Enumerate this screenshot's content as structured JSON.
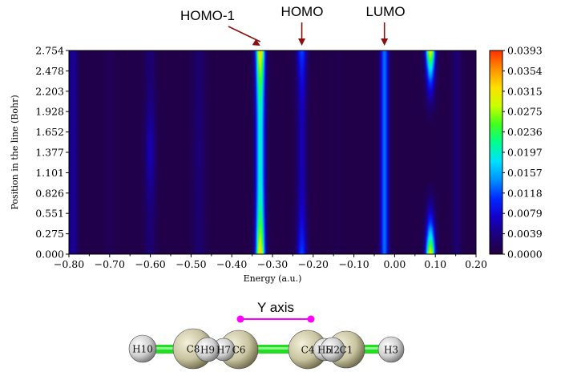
{
  "chart_data": {
    "type": "heatmap",
    "xlabel": "Energy (a.u.)",
    "ylabel": "Position in the line (Bohr)",
    "xlim": [
      -0.8,
      0.2
    ],
    "ylim": [
      0.0,
      2.754
    ],
    "x_ticks": [
      "−0.80",
      "−0.70",
      "−0.60",
      "−0.50",
      "−0.40",
      "−0.30",
      "−0.20",
      "−0.10",
      "0.00",
      "0.10",
      "0.20"
    ],
    "x_tick_values": [
      -0.8,
      -0.7,
      -0.6,
      -0.5,
      -0.4,
      -0.3,
      -0.2,
      -0.1,
      0.0,
      0.1,
      0.2
    ],
    "y_ticks": [
      "0.000",
      "0.275",
      "0.551",
      "0.826",
      "1.101",
      "1.377",
      "1.652",
      "1.928",
      "2.203",
      "2.478",
      "2.754"
    ],
    "y_tick_values": [
      0.0,
      0.275,
      0.551,
      0.826,
      1.101,
      1.377,
      1.652,
      1.928,
      2.203,
      2.478,
      2.754
    ],
    "colorbar": {
      "ticks": [
        "0.0393",
        "0.0354",
        "0.0315",
        "0.0275",
        "0.0236",
        "0.0197",
        "0.0157",
        "0.0118",
        "0.0079",
        "0.0039",
        "0.0000"
      ],
      "min": 0.0,
      "max": 0.0393,
      "colors": [
        "#22003f",
        "#1b007a",
        "#1500c8",
        "#0028ff",
        "#0090ff",
        "#00e0ff",
        "#00ff90",
        "#40ff20",
        "#c8ff00",
        "#ffe000",
        "#ff9000",
        "#ff3000"
      ]
    },
    "bands": [
      {
        "energy": -0.79,
        "width": 0.012,
        "base": 0.0045,
        "amp": 0.0,
        "mode": "flat"
      },
      {
        "energy": -0.7,
        "width": 0.015,
        "base": 0.0008,
        "amp": 0.0,
        "mode": "flat"
      },
      {
        "energy": -0.6,
        "width": 0.013,
        "base": 0.0025,
        "amp": 0.003,
        "mode": "center"
      },
      {
        "energy": -0.48,
        "width": 0.016,
        "base": 0.0022,
        "amp": 0.0005,
        "mode": "center"
      },
      {
        "energy": -0.33,
        "width": 0.011,
        "base": 0.0195,
        "amp": 0.0135,
        "mode": "ends"
      },
      {
        "energy": -0.228,
        "width": 0.012,
        "base": 0.0055,
        "amp": 0.0058,
        "mode": "ends"
      },
      {
        "energy": -0.14,
        "width": 0.018,
        "base": 0.0004,
        "amp": 0.0,
        "mode": "flat"
      },
      {
        "energy": -0.025,
        "width": 0.01,
        "base": 0.0128,
        "amp": 0.0,
        "mode": "flat"
      },
      {
        "energy": 0.088,
        "width": 0.011,
        "base": 0.0,
        "amp": 0.0315,
        "mode": "ends"
      },
      {
        "energy": 0.152,
        "width": 0.011,
        "base": 0.0025,
        "amp": 0.0,
        "mode": "flat"
      }
    ],
    "annotations": [
      {
        "label": "HOMO-1",
        "energy": -0.33
      },
      {
        "label": "HOMO",
        "energy": -0.228
      },
      {
        "label": "LUMO",
        "energy": -0.025
      }
    ]
  },
  "molecule": {
    "axis_label": "Y axis",
    "atoms": [
      {
        "label": "H10",
        "type": "H"
      },
      {
        "label": "C8",
        "type": "C"
      },
      {
        "label": "H9",
        "type": "H"
      },
      {
        "label": "H7",
        "type": "H"
      },
      {
        "label": "C6",
        "type": "C"
      },
      {
        "label": "C4",
        "type": "C"
      },
      {
        "label": "H5",
        "type": "H"
      },
      {
        "label": "H2",
        "type": "H"
      },
      {
        "label": "C1",
        "type": "C"
      },
      {
        "label": "H3",
        "type": "H"
      }
    ]
  },
  "colors": {
    "arrow": "#8b1010",
    "bond": "#22dd22",
    "axis_marker": "#ff00ff",
    "carbon": "#c8c3a0",
    "hydrogen": "#cfcfcf"
  }
}
